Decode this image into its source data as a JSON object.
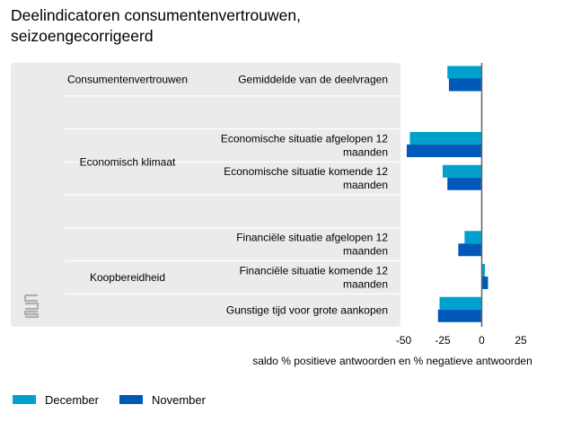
{
  "title": "Deelindicatoren consumentenvertrouwen, seizoengecorrigeerd",
  "colors": {
    "december": "#00a1cd",
    "november": "#0058b8",
    "panel": "#ebebeb",
    "logo": "#b0b0b0"
  },
  "legend": [
    {
      "label": "December",
      "color": "#00a1cd"
    },
    {
      "label": "November",
      "color": "#0058b8"
    }
  ],
  "logo_icon": "cbs-logo-icon",
  "chart_data": {
    "type": "bar",
    "orientation": "horizontal",
    "groups": [
      "Consumentenvertrouwen",
      "Economisch klimaat",
      "Koopbereidheid"
    ],
    "categories": [
      "Gemiddelde van de deelvragen",
      "Economische situatie afgelopen 12 maanden",
      "Economische situatie komende 12 maanden",
      "Financiële situatie afgelopen 12 maanden",
      "Financiële situatie komende 12 maanden",
      "Gunstige tijd voor grote aankopen"
    ],
    "category_group": [
      "Consumentenvertrouwen",
      "Economisch klimaat",
      "Economisch klimaat",
      "Koopbereidheid",
      "Koopbereidheid",
      "Koopbereidheid"
    ],
    "series": [
      {
        "name": "December",
        "values": [
          -22,
          -46,
          -25,
          -11,
          2,
          -27
        ]
      },
      {
        "name": "November",
        "values": [
          -21,
          -48,
          -22,
          -15,
          4,
          -28
        ]
      }
    ],
    "xlabel": "saldo % positieve antwoorden en % negatieve antwoorden",
    "xlim": [
      -50,
      25
    ],
    "xticks": [
      -50,
      -25,
      0,
      25
    ],
    "legend_position": "bottom-left"
  }
}
